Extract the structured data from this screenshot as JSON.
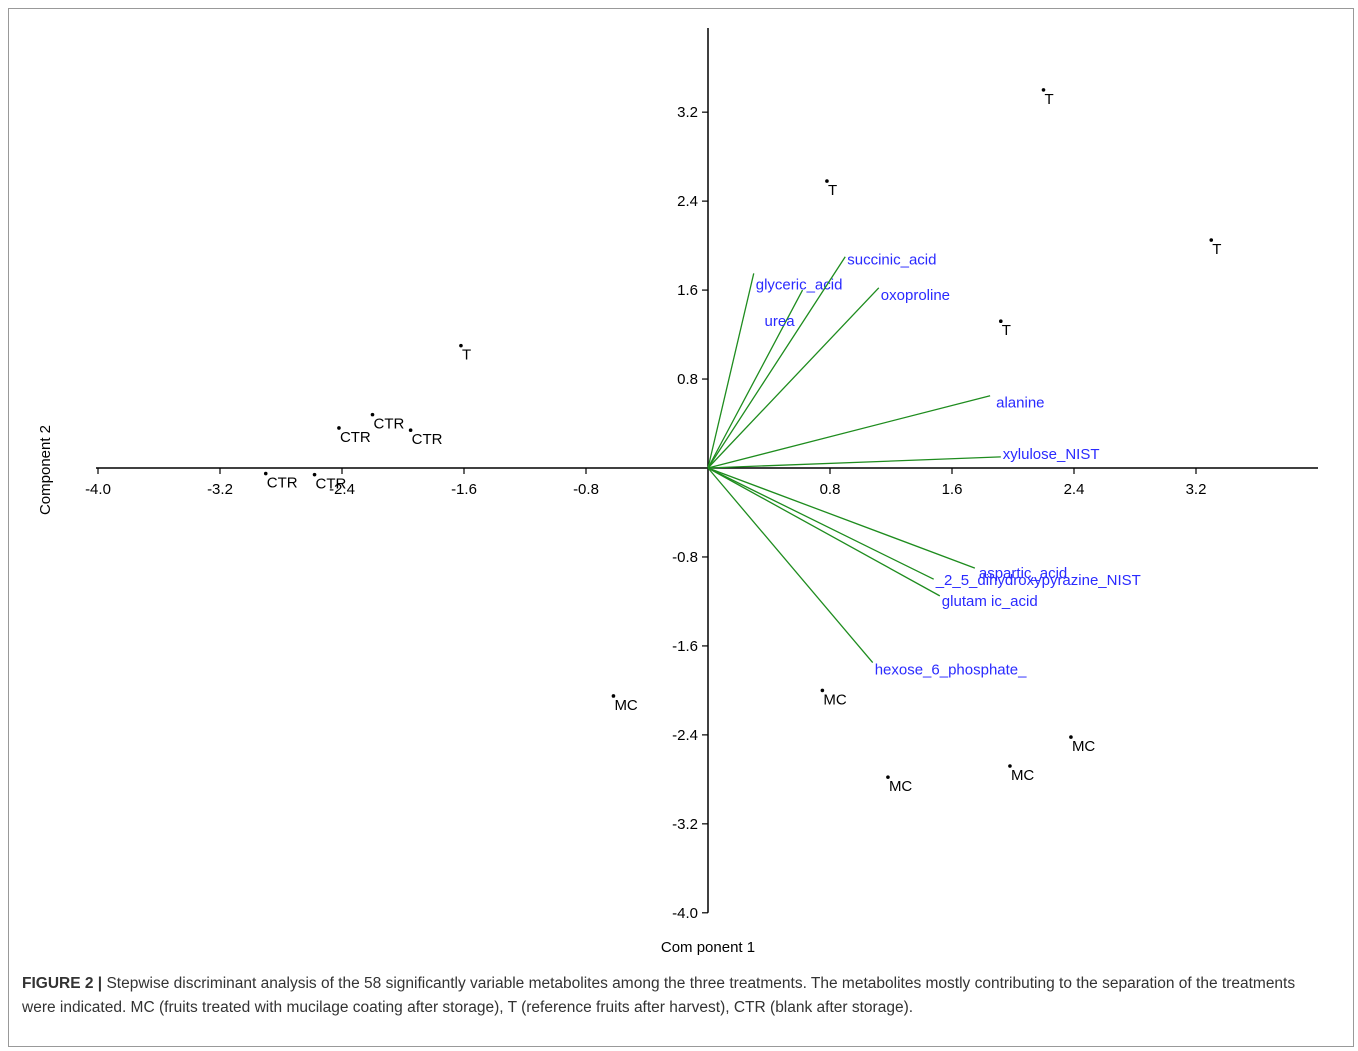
{
  "chart_data": {
    "type": "scatter",
    "xlabel": "Com ponent 1",
    "ylabel": "Component 2",
    "xlim": [
      -4.0,
      4.0
    ],
    "ylim": [
      -4.0,
      4.0
    ],
    "x_ticks": [
      -4.0,
      -3.2,
      -2.4,
      -1.6,
      -0.8,
      0.8,
      1.6,
      2.4,
      3.2
    ],
    "x_tick_labels": [
      "-4.0",
      "-3.2",
      "-2.4",
      "-1.6",
      "-0.8",
      "0.8",
      "1.6",
      "2.4",
      "3.2"
    ],
    "y_ticks": [
      3.2,
      2.4,
      1.6,
      0.8,
      -0.8,
      -1.6,
      -2.4,
      -3.2,
      -4.0
    ],
    "y_tick_labels": [
      "3.2",
      "2.4",
      "1.6",
      "0.8",
      "-0.8",
      "-1.6",
      "-2.4",
      "-3.2",
      "-4.0"
    ],
    "grid": false,
    "points": [
      {
        "label": "T",
        "x": 2.2,
        "y": 3.4
      },
      {
        "label": "T",
        "x": 0.78,
        "y": 2.58
      },
      {
        "label": "T",
        "x": 3.3,
        "y": 2.05
      },
      {
        "label": "T",
        "x": 1.92,
        "y": 1.32
      },
      {
        "label": "T",
        "x": -1.62,
        "y": 1.1
      },
      {
        "label": "CTR",
        "x": -2.2,
        "y": 0.48
      },
      {
        "label": "CTR",
        "x": -2.42,
        "y": 0.36
      },
      {
        "label": "CTR",
        "x": -1.95,
        "y": 0.34
      },
      {
        "label": "CTR",
        "x": -2.9,
        "y": -0.05
      },
      {
        "label": "CTR",
        "x": -2.58,
        "y": -0.06
      },
      {
        "label": "MC",
        "x": -0.62,
        "y": -2.05
      },
      {
        "label": "MC",
        "x": 0.75,
        "y": -2.0
      },
      {
        "label": "MC",
        "x": 1.18,
        "y": -2.78
      },
      {
        "label": "MC",
        "x": 1.98,
        "y": -2.68
      },
      {
        "label": "MC",
        "x": 2.38,
        "y": -2.42
      }
    ],
    "vectors": [
      {
        "name": "glyceric_acid",
        "x": 0.3,
        "y": 1.75
      },
      {
        "name": "succinic_acid",
        "x": 0.9,
        "y": 1.9
      },
      {
        "name": "urea",
        "x": 0.62,
        "y": 1.6
      },
      {
        "name": "oxoproline",
        "x": 1.12,
        "y": 1.62
      },
      {
        "name": "alanine",
        "x": 1.85,
        "y": 0.65
      },
      {
        "name": "xylulose_NIST",
        "x": 1.92,
        "y": 0.1
      },
      {
        "name": "aspartic_acid",
        "x": 1.75,
        "y": -0.9
      },
      {
        "name": "_2_5_dihydroxypyrazine_NIST",
        "x": 1.48,
        "y": -1.0
      },
      {
        "name": "glutam ic_acid",
        "x": 1.52,
        "y": -1.15
      },
      {
        "name": "hexose_6_phosphate_",
        "x": 1.08,
        "y": -1.75
      }
    ]
  },
  "caption": {
    "label": "FIGURE 2 |",
    "text": " Stepwise discriminant analysis of the 58 significantly variable metabolites among the three treatments. The metabolites mostly contributing to the separation of the treatments were indicated. MC (fruits treated with mucilage coating after storage), T (reference fruits after harvest), CTR (blank after storage)."
  }
}
